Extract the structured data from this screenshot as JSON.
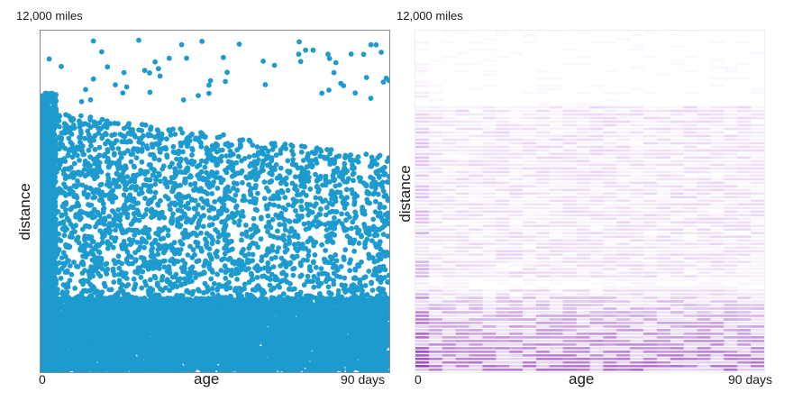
{
  "chart_data": [
    {
      "type": "scatter",
      "xlabel": "age",
      "ylabel": "distance",
      "y_top_label": "12,000 miles",
      "x_min_label": "0",
      "x_max_label": "90 days",
      "xlim": [
        0,
        90
      ],
      "ylim": [
        0,
        12000
      ],
      "point_color": "#1d9bcf",
      "grid": false,
      "legend": "none",
      "regions": [
        {
          "name": "dense lower band",
          "x_range": [
            0,
            90
          ],
          "y_range": [
            0,
            2600
          ]
        },
        {
          "name": "sparse upper band",
          "x_range": [
            0,
            90
          ],
          "y_range": [
            2600,
            9500
          ]
        }
      ]
    },
    {
      "type": "heatmap",
      "xlabel": "age",
      "ylabel": "distance",
      "y_top_label": "12,000 miles",
      "x_min_label": "0",
      "x_max_label": "90 days",
      "xlim": [
        0,
        90
      ],
      "ylim": [
        0,
        12000
      ],
      "color_low": "#ffffff",
      "color_high": "#8a10d0",
      "grid": false,
      "legend": "none"
    }
  ]
}
